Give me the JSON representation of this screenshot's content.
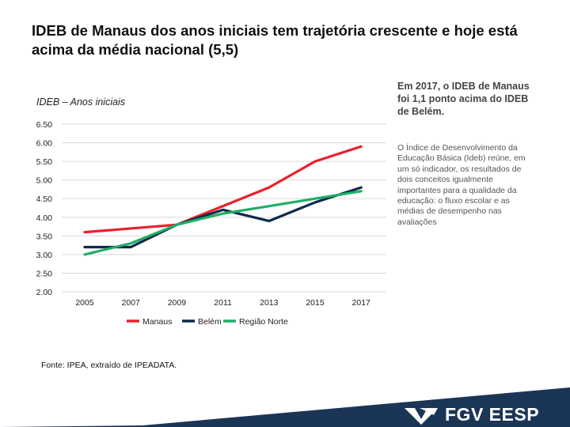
{
  "slide": {
    "title": "IDEB de Manaus dos anos iniciais tem trajetória crescente e hoje está acima da média nacional (5,5)",
    "highlight": "Em 2017, o IDEB de Manaus foi 1,1 ponto acima do IDEB de Belém.",
    "body": "O Índice de Desenvolvimento da Educação Básica (Ideb) reúne, em um só indicador, os resultados de dois conceitos igualmente importantes para a qualidade da educação: o fluxo escolar e as médias de desempenho nas avaliações",
    "source": "Fonte: IPEA, extraído de IPEADATA.",
    "logo": "FGV EESP"
  },
  "colors": {
    "manaus": "#e8212d",
    "belem": "#0e2a4a",
    "regiao_norte": "#1fae66",
    "footer": "#1b3556"
  },
  "chart_data": {
    "type": "line",
    "title": "IDEB – Anos iniciais",
    "x": [
      "2005",
      "2007",
      "2009",
      "2011",
      "2013",
      "2015",
      "2017"
    ],
    "ylim": [
      2.0,
      6.5
    ],
    "yticks": [
      "2.00",
      "2.50",
      "3.00",
      "3.50",
      "4.00",
      "4.50",
      "5.00",
      "5.50",
      "6.00",
      "6.50"
    ],
    "ytick_values": [
      2.0,
      2.5,
      3.0,
      3.5,
      4.0,
      4.5,
      5.0,
      5.5,
      6.0,
      6.5
    ],
    "grid": true,
    "legend_position": "bottom",
    "series": [
      {
        "name": "Manaus",
        "color_key": "manaus",
        "values": [
          3.6,
          3.7,
          3.8,
          4.3,
          4.8,
          5.5,
          5.9
        ]
      },
      {
        "name": "Belém",
        "color_key": "belem",
        "values": [
          3.2,
          3.2,
          3.8,
          4.2,
          3.9,
          4.4,
          4.8
        ]
      },
      {
        "name": "Região Norte",
        "color_key": "regiao_norte",
        "values": [
          3.0,
          3.3,
          3.8,
          4.1,
          4.3,
          4.5,
          4.7
        ]
      }
    ]
  }
}
